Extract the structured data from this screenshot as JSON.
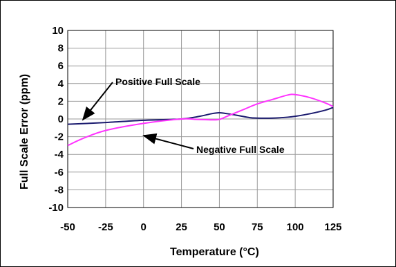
{
  "chart_data": {
    "type": "line",
    "title": "",
    "xlabel": "Temperature (°C)",
    "ylabel": "Full Scale Error (ppm)",
    "xlim": [
      -50,
      125
    ],
    "ylim": [
      -10,
      10
    ],
    "xticks": [
      -50,
      -25,
      0,
      25,
      50,
      75,
      100,
      125
    ],
    "yticks": [
      10,
      8,
      6,
      4,
      2,
      0,
      -2,
      -4,
      -6,
      -8,
      -10
    ],
    "grid": true,
    "legend": "none",
    "series": [
      {
        "name": "Positive Full Scale",
        "color": "#1a1a6e",
        "x": [
          -50,
          -25,
          0,
          25,
          37,
          45,
          50,
          55,
          62,
          70,
          75,
          85,
          95,
          100,
          110,
          120,
          125
        ],
        "y": [
          -0.6,
          -0.4,
          -0.15,
          0.0,
          0.3,
          0.6,
          0.7,
          0.6,
          0.4,
          0.15,
          0.1,
          0.1,
          0.2,
          0.3,
          0.6,
          1.0,
          1.3
        ]
      },
      {
        "name": "Negative Full Scale",
        "color": "#ff33ff",
        "x": [
          -50,
          -40,
          -25,
          0,
          25,
          35,
          45,
          50,
          55,
          65,
          75,
          85,
          95,
          100,
          110,
          120,
          125
        ],
        "y": [
          -3.0,
          -2.2,
          -1.3,
          -0.5,
          0.0,
          -0.05,
          -0.1,
          -0.05,
          0.3,
          1.0,
          1.7,
          2.2,
          2.7,
          2.75,
          2.4,
          1.8,
          1.4
        ]
      }
    ],
    "annotations": [
      {
        "text": "Positive Full Scale"
      },
      {
        "text": "Negative Full Scale"
      }
    ]
  }
}
